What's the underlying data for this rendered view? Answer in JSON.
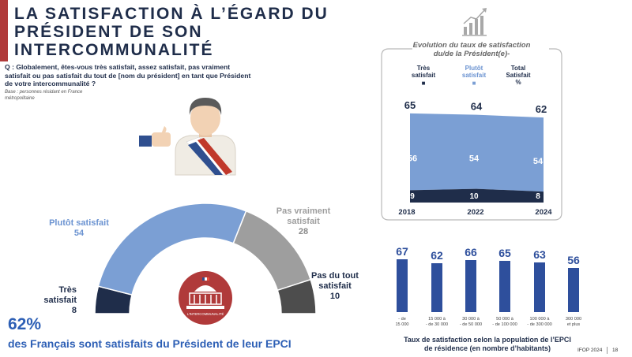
{
  "title": "LA SATISFACTION À L’ÉGARD DU PRÉSIDENT DE SON INTERCOMMUNALITÉ",
  "question": "Q : Globalement, êtes-vous très satisfait, assez satisfait, pas vraiment satisfait ou pas satisfait du tout de [nom du président] en tant que Président de votre intercommunalité ?",
  "base": "Base : personnes résidant en France métropolitaine",
  "badge_text": "L’INTERCOMMUNALITÉ",
  "kpi": {
    "value": "62%",
    "text": "des Français sont satisfaits du Président de leur EPCI"
  },
  "footer": {
    "source": "IFOP 2024",
    "page": "18"
  },
  "colors": {
    "navy": "#1f2d4a",
    "accent_blue": "#2d5fb5",
    "light_blue": "#7b9fd4",
    "grey": "#9e9e9e",
    "dark_grey": "#4d4d4d",
    "bar_blue": "#2e4f9c",
    "red": "#b03a3a"
  },
  "chart_data": [
    {
      "type": "pie",
      "variant": "semi-donut",
      "segments": [
        {
          "label": "Très satisfait",
          "value": 8,
          "color": "#1f2d4a"
        },
        {
          "label": "Plutôt satisfait",
          "value": 54,
          "color": "#7b9fd4"
        },
        {
          "label": "Pas vraiment satisfait",
          "value": 28,
          "color": "#9e9e9e"
        },
        {
          "label": "Pas du tout satisfait",
          "value": 10,
          "color": "#4d4d4d"
        }
      ]
    },
    {
      "type": "area",
      "title": "Evolution du taux de satisfaction du/de la Président(e)-",
      "legend": [
        {
          "label": "Très satisfait",
          "symbol": "■",
          "color": "#1f2d4a"
        },
        {
          "label": "Plutôt satisfait",
          "symbol": "■",
          "color": "#7b9fd4"
        },
        {
          "label": "Total Satisfait %",
          "symbol": "",
          "color": "#1f2d4a"
        }
      ],
      "x": [
        "2018",
        "2022",
        "2024"
      ],
      "series": [
        {
          "name": "Très satisfait",
          "values": [
            9,
            10,
            8
          ],
          "color": "#1f2d4a"
        },
        {
          "name": "Plutôt satisfait",
          "values": [
            56,
            54,
            54
          ],
          "color": "#7b9fd4"
        }
      ],
      "totals": [
        65,
        64,
        62
      ]
    },
    {
      "type": "bar",
      "title": "Taux de satisfaction selon la population de l’EPCI de résidence (en nombre d’habitants)",
      "categories": [
        "- de 15 000",
        "15 000 à - de 30 000",
        "30 000 à - de 50 000",
        "50 000 à - de 100 000",
        "100 000 à - de 300 000",
        "300 000 et plus"
      ],
      "values": [
        67,
        62,
        66,
        65,
        63,
        56
      ],
      "color": "#2e4f9c"
    }
  ]
}
